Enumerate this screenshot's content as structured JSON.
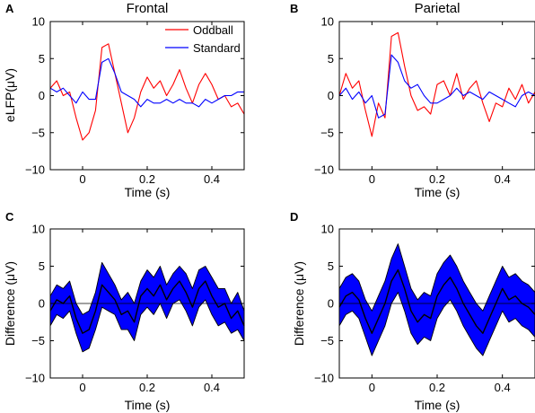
{
  "chart_data": [
    {
      "panel": "A",
      "type": "line",
      "title": "Frontal",
      "xlabel": "Time (s)",
      "ylabel": "eLFP(μV)",
      "xlim": [
        -0.1,
        0.5
      ],
      "ylim": [
        -10,
        10
      ],
      "xticks": [
        0,
        0.2,
        0.4
      ],
      "xtick_labels": [
        "0",
        "0.2",
        "0.4"
      ],
      "yticks": [
        -10,
        -5,
        0,
        5,
        10
      ],
      "ytick_labels": [
        "−10",
        "−5",
        "0",
        "5",
        "10"
      ],
      "legend": "top-right",
      "x": [
        -0.1,
        -0.08,
        -0.06,
        -0.04,
        -0.02,
        0.0,
        0.02,
        0.04,
        0.06,
        0.08,
        0.1,
        0.12,
        0.14,
        0.16,
        0.18,
        0.2,
        0.22,
        0.24,
        0.26,
        0.28,
        0.3,
        0.32,
        0.34,
        0.36,
        0.38,
        0.4,
        0.42,
        0.44,
        0.46,
        0.48,
        0.5
      ],
      "series": [
        {
          "name": "Oddball",
          "color": "#ff0000",
          "values": [
            1.0,
            2.0,
            0.0,
            0.5,
            -3.0,
            -6.0,
            -5.0,
            -2.0,
            6.5,
            7.0,
            3.0,
            -1.0,
            -5.0,
            -3.0,
            0.5,
            2.5,
            1.0,
            2.0,
            0.0,
            1.5,
            3.5,
            1.0,
            -1.0,
            1.5,
            3.0,
            1.5,
            -0.5,
            0.0,
            -1.5,
            -1.0,
            -2.5
          ]
        },
        {
          "name": "Standard",
          "color": "#0000ff",
          "values": [
            1.0,
            0.5,
            1.0,
            0.0,
            -1.0,
            0.5,
            -0.5,
            -0.5,
            4.5,
            5.0,
            3.0,
            0.5,
            0.0,
            -0.5,
            -1.5,
            -0.5,
            -1.0,
            -1.0,
            -0.5,
            -1.0,
            -0.5,
            -1.0,
            -1.0,
            -1.5,
            -0.5,
            -1.0,
            -0.5,
            0.0,
            0.0,
            0.5,
            0.5
          ]
        }
      ]
    },
    {
      "panel": "B",
      "type": "line",
      "title": "Parietal",
      "xlabel": "Time (s)",
      "ylabel": "",
      "xlim": [
        -0.1,
        0.5
      ],
      "ylim": [
        -10,
        10
      ],
      "xticks": [
        0,
        0.2,
        0.4
      ],
      "xtick_labels": [
        "0",
        "0.2",
        "0.4"
      ],
      "yticks": [
        -10,
        -5,
        0,
        5,
        10
      ],
      "ytick_labels": [
        "−10",
        "−5",
        "0",
        "5",
        "10"
      ],
      "x": [
        -0.1,
        -0.08,
        -0.06,
        -0.04,
        -0.02,
        0.0,
        0.02,
        0.04,
        0.06,
        0.08,
        0.1,
        0.12,
        0.14,
        0.16,
        0.18,
        0.2,
        0.22,
        0.24,
        0.26,
        0.28,
        0.3,
        0.32,
        0.34,
        0.36,
        0.38,
        0.4,
        0.42,
        0.44,
        0.46,
        0.48,
        0.5
      ],
      "series": [
        {
          "name": "Oddball",
          "color": "#ff0000",
          "values": [
            0.0,
            3.0,
            1.0,
            2.0,
            -2.0,
            -5.5,
            -1.0,
            -3.0,
            8.0,
            8.5,
            4.0,
            0.0,
            -2.0,
            -1.5,
            -2.5,
            1.5,
            2.0,
            0.0,
            3.0,
            -0.5,
            1.0,
            2.0,
            -1.0,
            -3.5,
            -1.0,
            -1.5,
            1.0,
            -0.5,
            1.5,
            -1.0,
            0.5
          ]
        },
        {
          "name": "Standard",
          "color": "#0000ff",
          "values": [
            0.0,
            1.0,
            -0.5,
            0.5,
            -1.0,
            0.0,
            -3.0,
            -2.5,
            5.5,
            4.5,
            2.0,
            1.0,
            1.5,
            0.0,
            -1.0,
            -1.0,
            -0.5,
            0.0,
            1.0,
            0.0,
            0.5,
            0.0,
            -0.5,
            0.5,
            0.0,
            -0.5,
            -1.0,
            -1.5,
            0.0,
            0.5,
            0.0
          ]
        }
      ]
    },
    {
      "panel": "C",
      "type": "area",
      "title": "",
      "xlabel": "Time (s)",
      "ylabel": "Difference (μV)",
      "xlim": [
        -0.1,
        0.5
      ],
      "ylim": [
        -10,
        10
      ],
      "xticks": [
        0,
        0.2,
        0.4
      ],
      "xtick_labels": [
        "0",
        "0.2",
        "0.4"
      ],
      "yticks": [
        -10,
        -5,
        0,
        5,
        10
      ],
      "ytick_labels": [
        "−10",
        "−5",
        "0",
        "5",
        "10"
      ],
      "band_color": "#0000ff",
      "zero_line": true,
      "x": [
        -0.1,
        -0.08,
        -0.06,
        -0.04,
        -0.02,
        0.0,
        0.02,
        0.04,
        0.06,
        0.08,
        0.1,
        0.12,
        0.14,
        0.16,
        0.18,
        0.2,
        0.22,
        0.24,
        0.26,
        0.28,
        0.3,
        0.32,
        0.34,
        0.36,
        0.38,
        0.4,
        0.42,
        0.44,
        0.46,
        0.48,
        0.5
      ],
      "series": [
        {
          "name": "",
          "color": "#000000",
          "values": [
            -1.0,
            0.5,
            0.0,
            1.0,
            -2.0,
            -4.0,
            -3.5,
            -1.0,
            2.5,
            1.5,
            0.5,
            -1.5,
            -1.0,
            -2.5,
            1.0,
            2.0,
            1.0,
            2.5,
            0.5,
            2.0,
            3.0,
            1.5,
            -0.5,
            2.0,
            3.0,
            1.0,
            -0.5,
            0.0,
            -2.0,
            -1.0,
            -3.0
          ]
        },
        {
          "name": "",
          "color": "#000000",
          "values": [
            -3.0,
            -1.5,
            -2.0,
            -1.0,
            -4.0,
            -6.5,
            -6.0,
            -3.5,
            -0.5,
            -1.0,
            -1.5,
            -3.5,
            -3.5,
            -5.0,
            -1.5,
            -0.5,
            -1.5,
            0.0,
            -2.0,
            0.0,
            0.5,
            -1.0,
            -3.0,
            -0.5,
            0.5,
            -1.5,
            -3.0,
            -2.5,
            -4.0,
            -3.5,
            -5.0
          ]
        },
        {
          "name": "",
          "color": "#000000",
          "values": [
            1.0,
            2.5,
            2.0,
            3.0,
            0.0,
            -1.5,
            -1.0,
            1.5,
            5.5,
            4.0,
            2.5,
            0.5,
            1.5,
            0.0,
            3.0,
            4.5,
            3.5,
            5.0,
            2.5,
            4.0,
            5.0,
            4.0,
            2.0,
            4.5,
            5.0,
            3.5,
            2.0,
            2.0,
            0.0,
            1.5,
            -1.0
          ]
        }
      ]
    },
    {
      "panel": "D",
      "type": "area",
      "title": "",
      "xlabel": "Time (s)",
      "ylabel": "Difference (μV)",
      "xlim": [
        -0.1,
        0.5
      ],
      "ylim": [
        -10,
        10
      ],
      "xticks": [
        0,
        0.2,
        0.4
      ],
      "xtick_labels": [
        "0",
        "0.2",
        "0.4"
      ],
      "yticks": [
        -10,
        -5,
        0,
        5,
        10
      ],
      "ytick_labels": [
        "−10",
        "−5",
        "0",
        "5",
        "10"
      ],
      "band_color": "#0000ff",
      "zero_line": true,
      "x": [
        -0.1,
        -0.08,
        -0.06,
        -0.04,
        -0.02,
        0.0,
        0.02,
        0.04,
        0.06,
        0.08,
        0.1,
        0.12,
        0.14,
        0.16,
        0.18,
        0.2,
        0.22,
        0.24,
        0.26,
        0.28,
        0.3,
        0.32,
        0.34,
        0.36,
        0.38,
        0.4,
        0.42,
        0.44,
        0.46,
        0.48,
        0.5
      ],
      "series": [
        {
          "name": "",
          "color": "#000000",
          "values": [
            -0.5,
            1.0,
            1.5,
            0.5,
            -2.0,
            -4.0,
            -2.0,
            0.0,
            3.0,
            4.5,
            2.0,
            -1.0,
            -2.5,
            -1.5,
            -2.0,
            1.0,
            2.5,
            3.5,
            2.0,
            0.0,
            -1.5,
            -3.0,
            -4.0,
            -2.0,
            0.0,
            2.0,
            0.5,
            1.0,
            0.0,
            -0.5,
            -1.5
          ]
        },
        {
          "name": "",
          "color": "#000000",
          "values": [
            -3.0,
            -1.5,
            -1.0,
            -2.0,
            -4.5,
            -7.0,
            -5.0,
            -3.0,
            0.0,
            1.5,
            -1.0,
            -4.0,
            -5.5,
            -4.5,
            -5.0,
            -2.0,
            -0.5,
            0.5,
            -1.0,
            -3.0,
            -4.5,
            -6.0,
            -7.0,
            -5.0,
            -3.0,
            -1.0,
            -2.5,
            -2.0,
            -3.0,
            -3.5,
            -4.5
          ]
        },
        {
          "name": "",
          "color": "#000000",
          "values": [
            2.0,
            3.5,
            4.0,
            3.0,
            0.5,
            -1.0,
            1.0,
            3.0,
            6.0,
            8.0,
            5.0,
            2.0,
            0.5,
            1.5,
            1.0,
            4.0,
            5.5,
            6.5,
            5.0,
            3.0,
            1.5,
            0.0,
            -1.0,
            1.0,
            3.0,
            5.0,
            3.5,
            4.0,
            3.0,
            2.5,
            1.5
          ]
        }
      ]
    }
  ]
}
